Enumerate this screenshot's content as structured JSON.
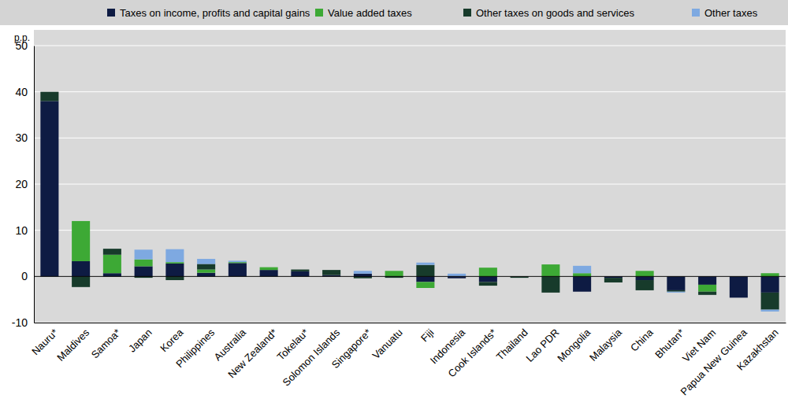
{
  "chart_data": {
    "type": "bar",
    "stacked": true,
    "grid": true,
    "legend": "top",
    "y_label": "p.p.",
    "categories": [
      "Nauru*",
      "Maldives",
      "Samoa*",
      "Japan",
      "Korea",
      "Philippines",
      "Australia",
      "New Zealand*",
      "Tokelau*",
      "Solomon Islands",
      "Singapore*",
      "Vanuatu",
      "Fiji",
      "Indonesia",
      "Cook Islands*",
      "Thailand",
      "Lao PDR",
      "Mongolia",
      "Malaysia",
      "China",
      "Bhutan*",
      "Viet Nam",
      "Papua New Guinea",
      "Kazakhstan"
    ],
    "ylim": [
      -10,
      50
    ],
    "yticks": [
      -10,
      0,
      10,
      20,
      30,
      40,
      50
    ],
    "series": [
      {
        "name": "Taxes on income, profits and capital gains",
        "color": "#0e1b43",
        "values": [
          38,
          3.3,
          0.7,
          2.2,
          2.8,
          0.8,
          2.9,
          1.4,
          1.1,
          0.3,
          0.6,
          0,
          -1.2,
          -0.4,
          -1.2,
          0,
          0,
          -3.3,
          -0.3,
          -0.8,
          -3.0,
          -1.8,
          -4.6,
          -3.5
        ]
      },
      {
        "name": "Value added taxes",
        "color": "#3da935",
        "values": [
          0,
          8.7,
          4.0,
          1.5,
          0.3,
          0.7,
          0.2,
          0.6,
          0,
          0,
          0,
          1.2,
          -1.3,
          0,
          1.9,
          0,
          2.6,
          0.7,
          0,
          1.2,
          0,
          -1.5,
          0,
          0.7
        ]
      },
      {
        "name": "Other taxes on goods and services",
        "color": "#173b2b",
        "values": [
          2,
          -2.3,
          1.3,
          -0.3,
          -0.8,
          1.2,
          0,
          0,
          0.4,
          1.1,
          -0.4,
          -0.3,
          2.5,
          0,
          -0.8,
          -0.3,
          -3.5,
          0,
          -1.0,
          -2.2,
          -0.3,
          -0.7,
          0,
          -3.7
        ]
      },
      {
        "name": "Other taxes",
        "color": "#7ea9e1",
        "values": [
          0,
          0,
          0,
          2.1,
          2.8,
          1.1,
          0.3,
          0,
          0,
          0,
          0.6,
          0,
          0.5,
          0.6,
          0,
          0,
          0,
          1.6,
          0,
          0,
          -0.2,
          0,
          0,
          -0.4
        ]
      }
    ]
  }
}
